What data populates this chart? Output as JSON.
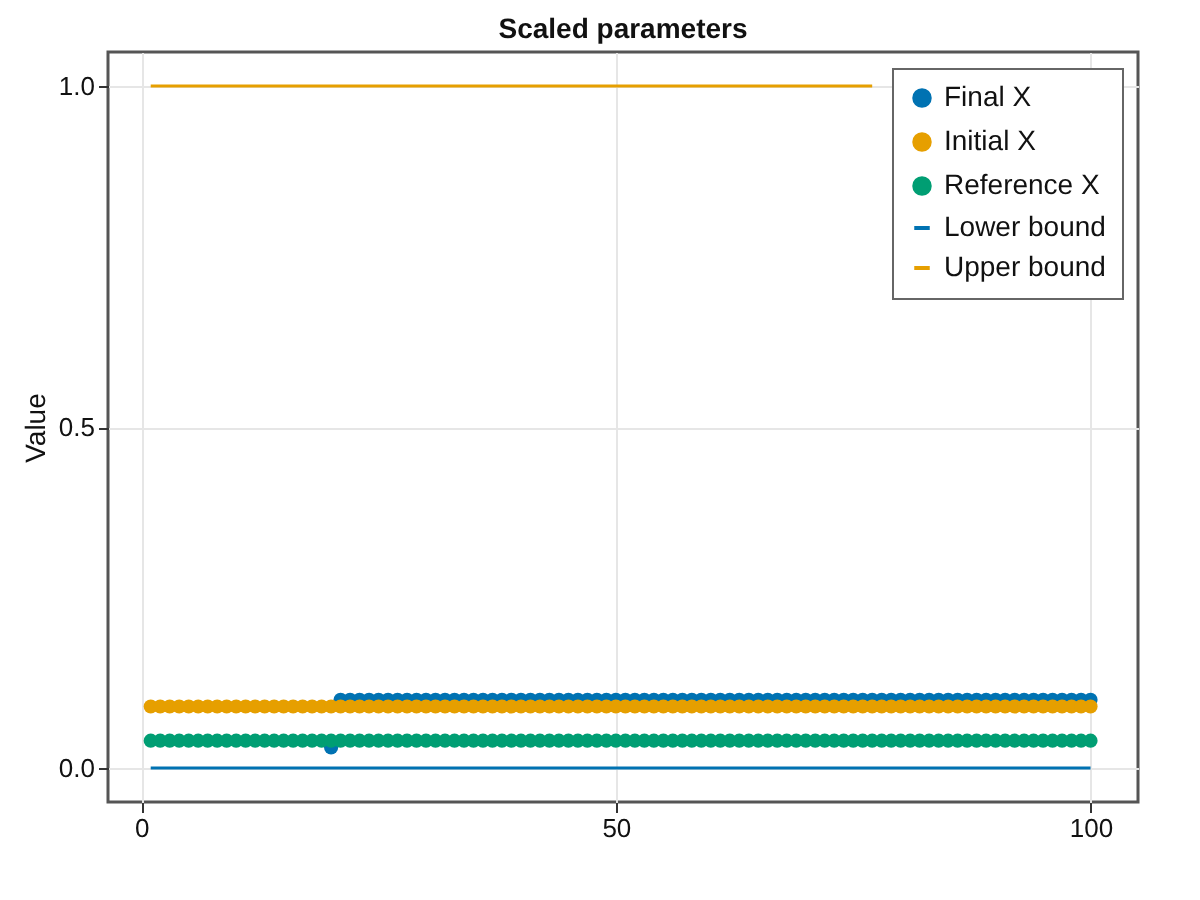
{
  "chart_data": {
    "type": "scatter",
    "title": "Scaled parameters",
    "ylabel": "Value",
    "x": [
      1,
      2,
      3,
      4,
      5,
      6,
      7,
      8,
      9,
      10,
      11,
      12,
      13,
      14,
      15,
      16,
      17,
      18,
      19,
      20,
      21,
      22,
      23,
      24,
      25,
      26,
      27,
      28,
      29,
      30,
      31,
      32,
      33,
      34,
      35,
      36,
      37,
      38,
      39,
      40,
      41,
      42,
      43,
      44,
      45,
      46,
      47,
      48,
      49,
      50,
      51,
      52,
      53,
      54,
      55,
      56,
      57,
      58,
      59,
      60,
      61,
      62,
      63,
      64,
      65,
      66,
      67,
      68,
      69,
      70,
      71,
      72,
      73,
      74,
      75,
      76,
      77,
      78,
      79,
      80,
      81,
      82,
      83,
      84,
      85,
      86,
      87,
      88,
      89,
      90,
      91,
      92,
      93,
      94,
      95,
      96,
      97,
      98,
      99,
      100
    ],
    "series": [
      {
        "name": "Final X",
        "color": "#0072b2",
        "values": [
          null,
          null,
          null,
          null,
          null,
          null,
          null,
          null,
          null,
          null,
          null,
          null,
          null,
          null,
          null,
          null,
          null,
          null,
          null,
          0.03,
          0.1,
          0.1,
          0.1,
          0.1,
          0.1,
          0.1,
          0.1,
          0.1,
          0.1,
          0.1,
          0.1,
          0.1,
          0.1,
          0.1,
          0.1,
          0.1,
          0.1,
          0.1,
          0.1,
          0.1,
          0.1,
          0.1,
          0.1,
          0.1,
          0.1,
          0.1,
          0.1,
          0.1,
          0.1,
          0.1,
          0.1,
          0.1,
          0.1,
          0.1,
          0.1,
          0.1,
          0.1,
          0.1,
          0.1,
          0.1,
          0.1,
          0.1,
          0.1,
          0.1,
          0.1,
          0.1,
          0.1,
          0.1,
          0.1,
          0.1,
          0.1,
          0.1,
          0.1,
          0.1,
          0.1,
          0.1,
          0.1,
          0.1,
          0.1,
          0.1,
          0.1,
          0.1,
          0.1,
          0.1,
          0.1,
          0.1,
          0.1,
          0.1,
          0.1,
          0.1,
          0.1,
          0.1,
          0.1,
          0.1,
          0.1,
          0.1,
          0.1,
          0.1,
          0.1,
          0.1
        ]
      },
      {
        "name": "Initial X",
        "color": "#e69f00",
        "values": [
          0.09,
          0.09,
          0.09,
          0.09,
          0.09,
          0.09,
          0.09,
          0.09,
          0.09,
          0.09,
          0.09,
          0.09,
          0.09,
          0.09,
          0.09,
          0.09,
          0.09,
          0.09,
          0.09,
          0.09,
          0.09,
          0.09,
          0.09,
          0.09,
          0.09,
          0.09,
          0.09,
          0.09,
          0.09,
          0.09,
          0.09,
          0.09,
          0.09,
          0.09,
          0.09,
          0.09,
          0.09,
          0.09,
          0.09,
          0.09,
          0.09,
          0.09,
          0.09,
          0.09,
          0.09,
          0.09,
          0.09,
          0.09,
          0.09,
          0.09,
          0.09,
          0.09,
          0.09,
          0.09,
          0.09,
          0.09,
          0.09,
          0.09,
          0.09,
          0.09,
          0.09,
          0.09,
          0.09,
          0.09,
          0.09,
          0.09,
          0.09,
          0.09,
          0.09,
          0.09,
          0.09,
          0.09,
          0.09,
          0.09,
          0.09,
          0.09,
          0.09,
          0.09,
          0.09,
          0.09,
          0.09,
          0.09,
          0.09,
          0.09,
          0.09,
          0.09,
          0.09,
          0.09,
          0.09,
          0.09,
          0.09,
          0.09,
          0.09,
          0.09,
          0.09,
          0.09,
          0.09,
          0.09,
          0.09,
          0.09
        ]
      },
      {
        "name": "Reference X",
        "color": "#009e73",
        "values": [
          0.04,
          0.04,
          0.04,
          0.04,
          0.04,
          0.04,
          0.04,
          0.04,
          0.04,
          0.04,
          0.04,
          0.04,
          0.04,
          0.04,
          0.04,
          0.04,
          0.04,
          0.04,
          0.04,
          0.04,
          0.04,
          0.04,
          0.04,
          0.04,
          0.04,
          0.04,
          0.04,
          0.04,
          0.04,
          0.04,
          0.04,
          0.04,
          0.04,
          0.04,
          0.04,
          0.04,
          0.04,
          0.04,
          0.04,
          0.04,
          0.04,
          0.04,
          0.04,
          0.04,
          0.04,
          0.04,
          0.04,
          0.04,
          0.04,
          0.04,
          0.04,
          0.04,
          0.04,
          0.04,
          0.04,
          0.04,
          0.04,
          0.04,
          0.04,
          0.04,
          0.04,
          0.04,
          0.04,
          0.04,
          0.04,
          0.04,
          0.04,
          0.04,
          0.04,
          0.04,
          0.04,
          0.04,
          0.04,
          0.04,
          0.04,
          0.04,
          0.04,
          0.04,
          0.04,
          0.04,
          0.04,
          0.04,
          0.04,
          0.04,
          0.04,
          0.04,
          0.04,
          0.04,
          0.04,
          0.04,
          0.04,
          0.04,
          0.04,
          0.04,
          0.04,
          0.04,
          0.04,
          0.04,
          0.04,
          0.04
        ]
      },
      {
        "name": "Lower bound",
        "type": "line",
        "marker": "none",
        "color": "#0072b2",
        "x": [
          1,
          100
        ],
        "values": [
          0,
          0
        ]
      },
      {
        "name": "Upper bound",
        "type": "line",
        "marker": "none",
        "color": "#e69f00",
        "x": [
          1,
          77
        ],
        "values": [
          1,
          1
        ]
      }
    ],
    "xlim": [
      -3.5,
      105
    ],
    "ylim": [
      -0.05,
      1.05
    ],
    "xticks": [
      0,
      50,
      100
    ],
    "yticks": [
      {
        "value": 0,
        "label": "0.0"
      },
      {
        "value": 0.5,
        "label": "0.5"
      },
      {
        "value": 1,
        "label": "1.0"
      }
    ],
    "grid": true,
    "legend": "top right",
    "marker": "circle"
  }
}
